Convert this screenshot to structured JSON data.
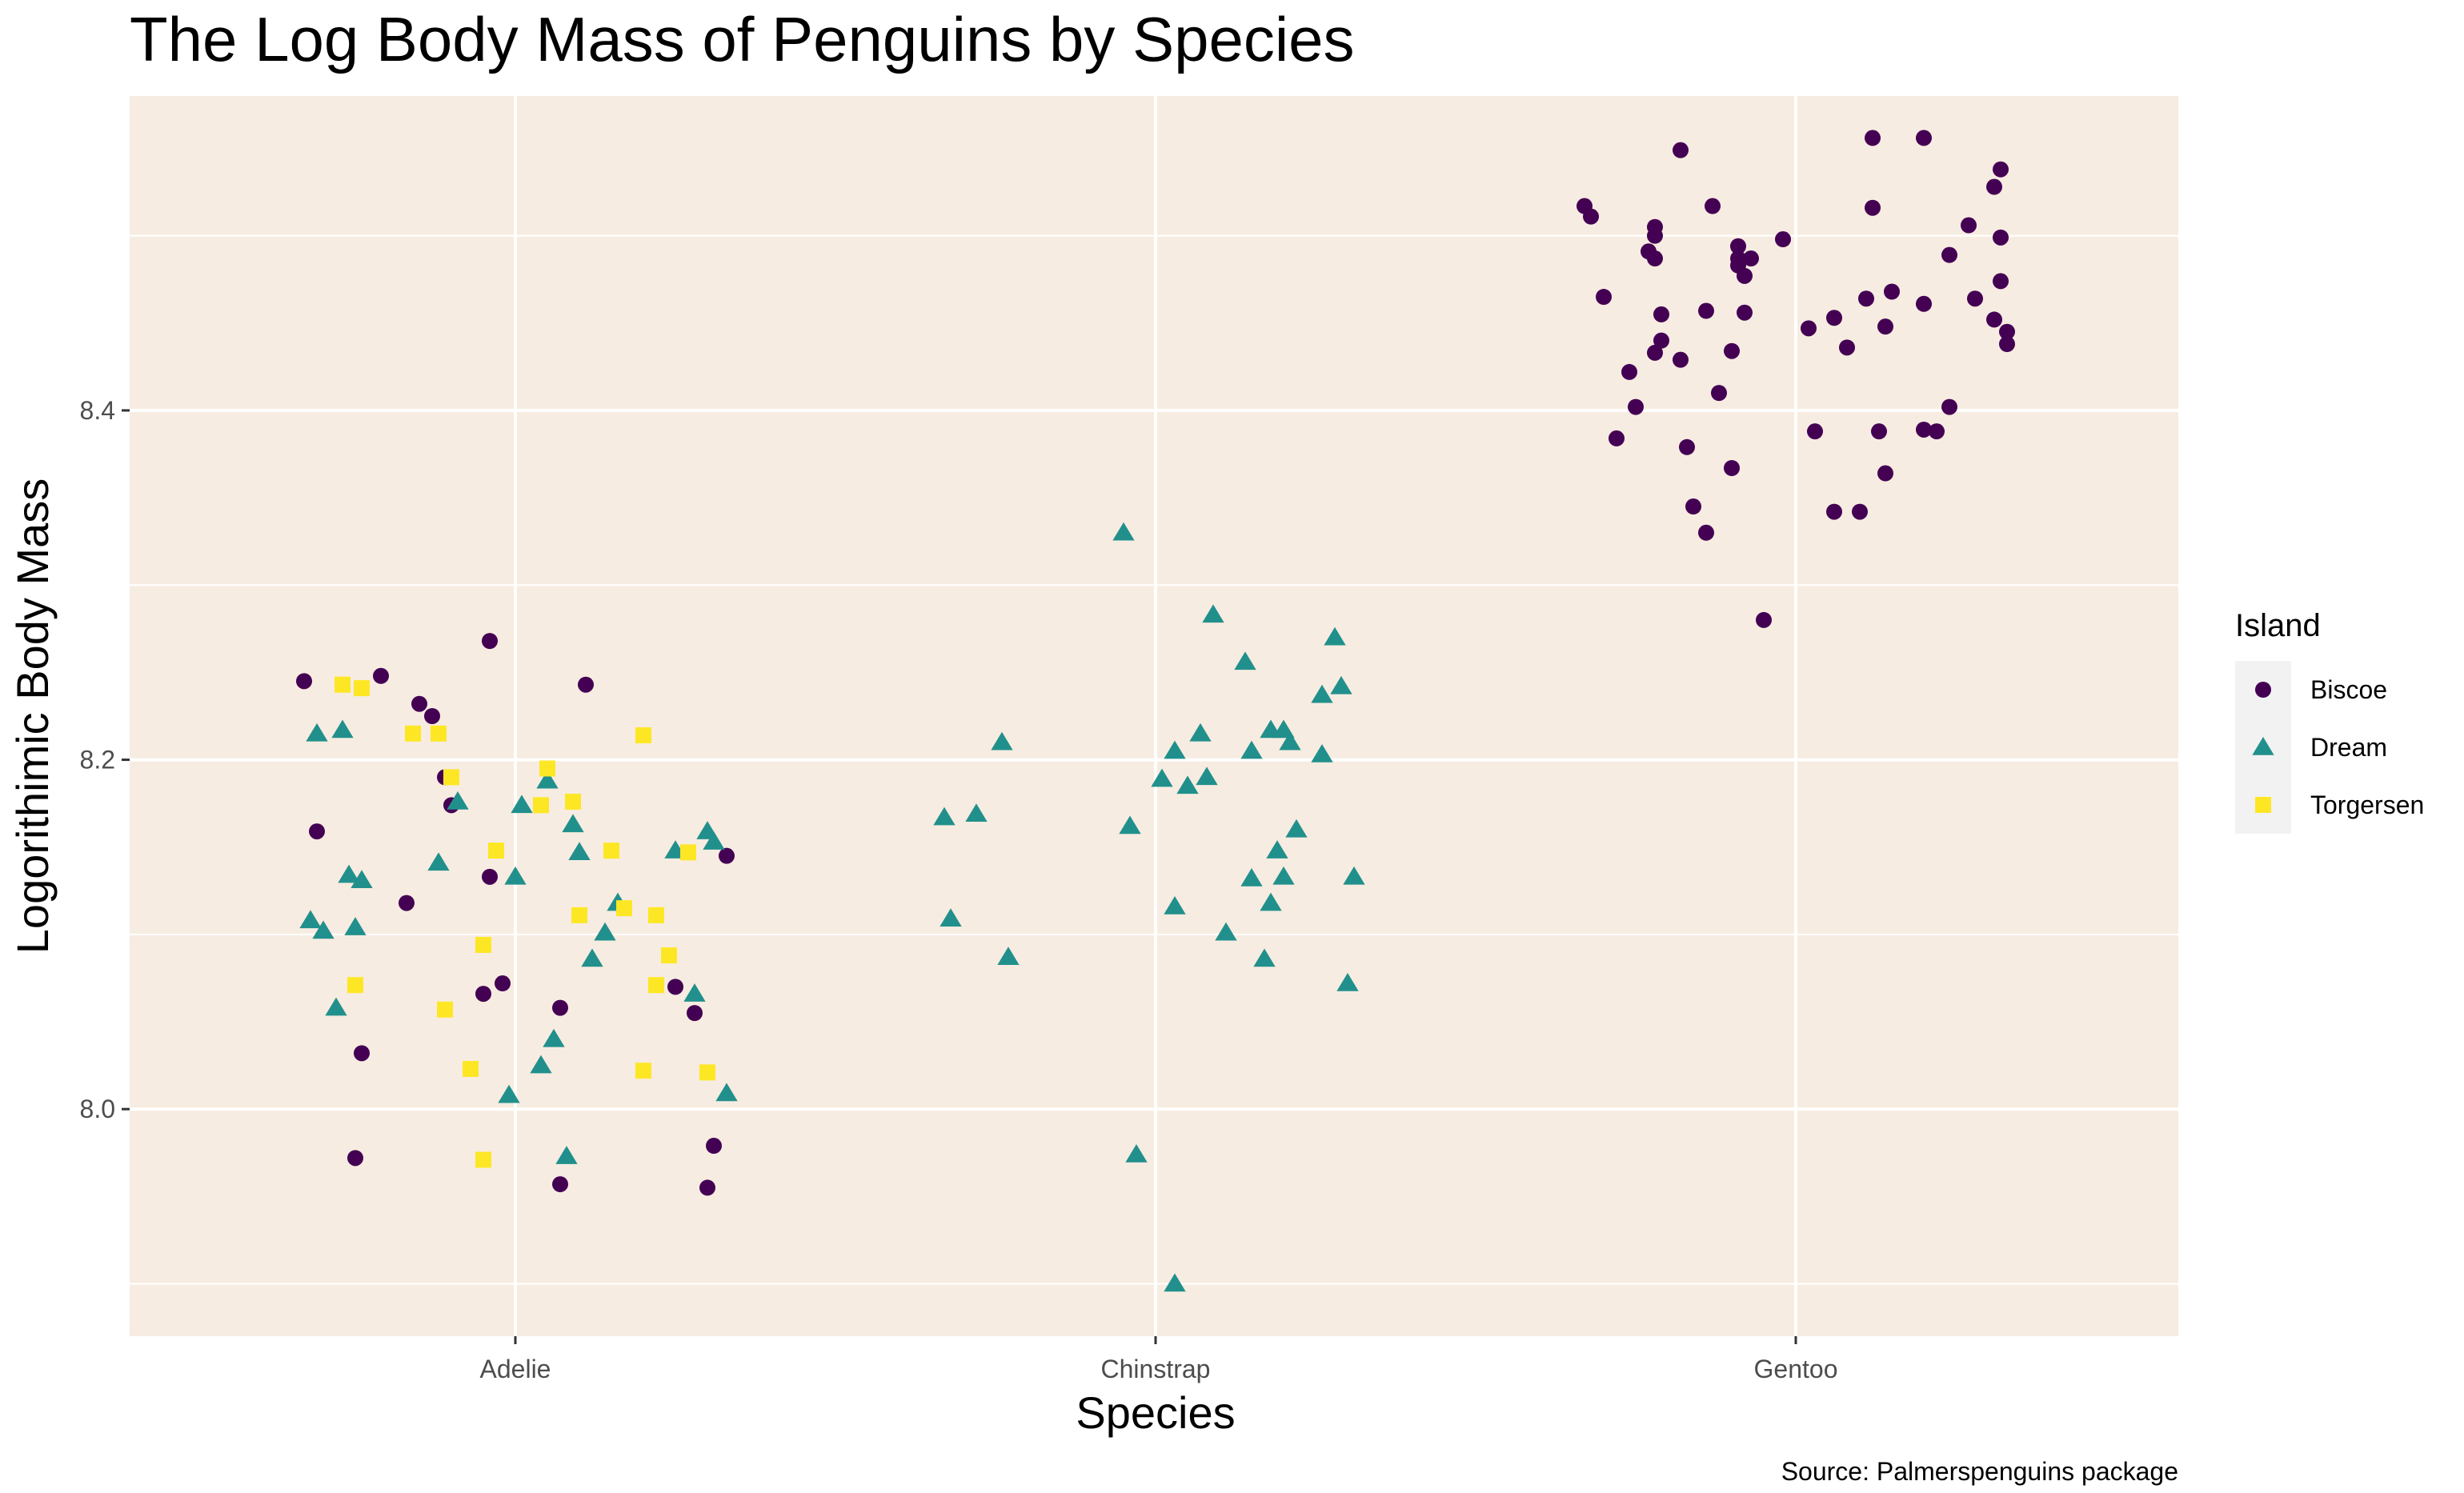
{
  "chart_data": {
    "type": "scatter",
    "title": "The Log Body Mass of Penguins by Species",
    "xlabel": "Species",
    "ylabel": "Logorithimic Body Mass",
    "caption": "Source: Palmerspenguins package",
    "categories": [
      "Adelie",
      "Chinstrap",
      "Gentoo"
    ],
    "y_ticks": [
      "8.0",
      "8.2",
      "8.4"
    ],
    "ylim": [
      7.87,
      8.58
    ],
    "grid": true,
    "panel_background": "#F7ECE1",
    "legend": {
      "title": "Island",
      "placement": "right",
      "entries": [
        {
          "label": "Biscoe",
          "shape": "circle",
          "color": "#440154"
        },
        {
          "label": "Dream",
          "shape": "triangle",
          "color": "#21908C"
        },
        {
          "label": "Torgersen",
          "shape": "square",
          "color": "#FDE725"
        }
      ]
    },
    "series": [
      {
        "name": "Biscoe",
        "shape": "circle",
        "color": "#440154",
        "points": [
          [
            -0.33,
            8.245
          ],
          [
            -0.31,
            8.159
          ],
          [
            -0.25,
            7.972
          ],
          [
            -0.24,
            8.032
          ],
          [
            -0.21,
            8.248
          ],
          [
            -0.17,
            8.118
          ],
          [
            -0.15,
            8.232
          ],
          [
            -0.13,
            8.225
          ],
          [
            -0.11,
            8.19
          ],
          [
            -0.1,
            8.174
          ],
          [
            -0.04,
            8.268
          ],
          [
            -0.04,
            8.133
          ],
          [
            -0.02,
            8.072
          ],
          [
            -0.05,
            8.066
          ],
          [
            0.07,
            8.058
          ],
          [
            0.07,
            7.957
          ],
          [
            0.11,
            8.243
          ],
          [
            0.25,
            8.07
          ],
          [
            0.28,
            8.055
          ],
          [
            0.3,
            7.955
          ],
          [
            0.31,
            7.979
          ],
          [
            0.33,
            8.145
          ],
          [
            1.67,
            8.517
          ],
          [
            1.68,
            8.511
          ],
          [
            1.7,
            8.465
          ],
          [
            1.72,
            8.384
          ],
          [
            1.74,
            8.422
          ],
          [
            1.75,
            8.402
          ],
          [
            1.77,
            8.491
          ],
          [
            1.78,
            8.433
          ],
          [
            1.78,
            8.487
          ],
          [
            1.78,
            8.505
          ],
          [
            1.78,
            8.5
          ],
          [
            1.79,
            8.44
          ],
          [
            1.79,
            8.455
          ],
          [
            1.82,
            8.549
          ],
          [
            1.82,
            8.429
          ],
          [
            1.83,
            8.379
          ],
          [
            1.84,
            8.345
          ],
          [
            1.86,
            8.33
          ],
          [
            1.86,
            8.457
          ],
          [
            1.87,
            8.517
          ],
          [
            1.88,
            8.41
          ],
          [
            1.9,
            8.434
          ],
          [
            1.9,
            8.367
          ],
          [
            1.91,
            8.487
          ],
          [
            1.91,
            8.494
          ],
          [
            1.91,
            8.483
          ],
          [
            1.92,
            8.477
          ],
          [
            1.92,
            8.456
          ],
          [
            1.93,
            8.487
          ],
          [
            1.95,
            8.28
          ],
          [
            1.98,
            8.498
          ],
          [
            2.02,
            8.447
          ],
          [
            2.03,
            8.388
          ],
          [
            2.06,
            8.453
          ],
          [
            2.06,
            8.342
          ],
          [
            2.08,
            8.436
          ],
          [
            2.1,
            8.342
          ],
          [
            2.11,
            8.464
          ],
          [
            2.12,
            8.556
          ],
          [
            2.12,
            8.516
          ],
          [
            2.13,
            8.388
          ],
          [
            2.14,
            8.448
          ],
          [
            2.14,
            8.364
          ],
          [
            2.15,
            8.468
          ],
          [
            2.2,
            8.389
          ],
          [
            2.2,
            8.556
          ],
          [
            2.2,
            8.461
          ],
          [
            2.22,
            8.388
          ],
          [
            2.24,
            8.489
          ],
          [
            2.24,
            8.402
          ],
          [
            2.27,
            8.506
          ],
          [
            2.28,
            8.464
          ],
          [
            2.31,
            8.452
          ],
          [
            2.31,
            8.528
          ],
          [
            2.32,
            8.538
          ],
          [
            2.32,
            8.474
          ],
          [
            2.32,
            8.499
          ],
          [
            2.33,
            8.438
          ],
          [
            2.33,
            8.445
          ]
        ]
      },
      {
        "name": "Dream",
        "shape": "triangle",
        "color": "#21908C",
        "points": [
          [
            -0.32,
            8.108
          ],
          [
            -0.31,
            8.215
          ],
          [
            -0.3,
            8.102
          ],
          [
            -0.28,
            8.058
          ],
          [
            -0.27,
            8.217
          ],
          [
            -0.26,
            8.134
          ],
          [
            -0.25,
            8.104
          ],
          [
            -0.24,
            8.131
          ],
          [
            -0.12,
            8.141
          ],
          [
            -0.09,
            8.176
          ],
          [
            -0.01,
            8.008
          ],
          [
            0.0,
            8.133
          ],
          [
            0.01,
            8.174
          ],
          [
            0.04,
            8.025
          ],
          [
            0.05,
            8.188
          ],
          [
            0.06,
            8.04
          ],
          [
            0.08,
            7.973
          ],
          [
            0.09,
            8.163
          ],
          [
            0.1,
            8.147
          ],
          [
            0.12,
            8.086
          ],
          [
            0.14,
            8.101
          ],
          [
            0.16,
            8.118
          ],
          [
            0.25,
            8.148
          ],
          [
            0.28,
            8.066
          ],
          [
            0.3,
            8.159
          ],
          [
            0.31,
            8.153
          ],
          [
            0.33,
            8.009
          ],
          [
            0.67,
            8.167
          ],
          [
            0.68,
            8.109
          ],
          [
            0.72,
            8.169
          ],
          [
            0.76,
            8.21
          ],
          [
            0.77,
            8.087
          ],
          [
            0.95,
            8.33
          ],
          [
            0.96,
            8.162
          ],
          [
            0.97,
            7.974
          ],
          [
            1.01,
            8.189
          ],
          [
            1.03,
            8.116
          ],
          [
            1.03,
            8.205
          ],
          [
            1.05,
            8.185
          ],
          [
            1.07,
            8.215
          ],
          [
            1.08,
            8.19
          ],
          [
            1.09,
            8.283
          ],
          [
            1.11,
            8.101
          ],
          [
            1.14,
            8.256
          ],
          [
            1.15,
            8.132
          ],
          [
            1.15,
            8.205
          ],
          [
            1.17,
            8.086
          ],
          [
            1.18,
            8.217
          ],
          [
            1.18,
            8.118
          ],
          [
            1.19,
            8.148
          ],
          [
            1.2,
            8.217
          ],
          [
            1.2,
            8.133
          ],
          [
            1.21,
            8.21
          ],
          [
            1.22,
            8.16
          ],
          [
            1.26,
            8.203
          ],
          [
            1.26,
            8.237
          ],
          [
            1.28,
            8.27
          ],
          [
            1.29,
            8.242
          ],
          [
            1.3,
            8.072
          ],
          [
            1.31,
            8.133
          ],
          [
            1.03,
            7.9
          ]
        ]
      },
      {
        "name": "Torgersen",
        "shape": "square",
        "color": "#FDE725",
        "points": [
          [
            -0.27,
            8.243
          ],
          [
            -0.25,
            8.071
          ],
          [
            -0.24,
            8.241
          ],
          [
            -0.16,
            8.215
          ],
          [
            -0.12,
            8.215
          ],
          [
            -0.11,
            8.057
          ],
          [
            -0.1,
            8.19
          ],
          [
            -0.07,
            8.023
          ],
          [
            -0.05,
            8.094
          ],
          [
            -0.05,
            7.971
          ],
          [
            -0.03,
            8.148
          ],
          [
            0.04,
            8.174
          ],
          [
            0.05,
            8.195
          ],
          [
            0.09,
            8.176
          ],
          [
            0.1,
            8.111
          ],
          [
            0.15,
            8.148
          ],
          [
            0.17,
            8.115
          ],
          [
            0.2,
            8.022
          ],
          [
            0.2,
            8.214
          ],
          [
            0.22,
            8.111
          ],
          [
            0.22,
            8.071
          ],
          [
            0.24,
            8.088
          ],
          [
            0.27,
            8.147
          ],
          [
            0.3,
            8.021
          ]
        ]
      }
    ]
  }
}
